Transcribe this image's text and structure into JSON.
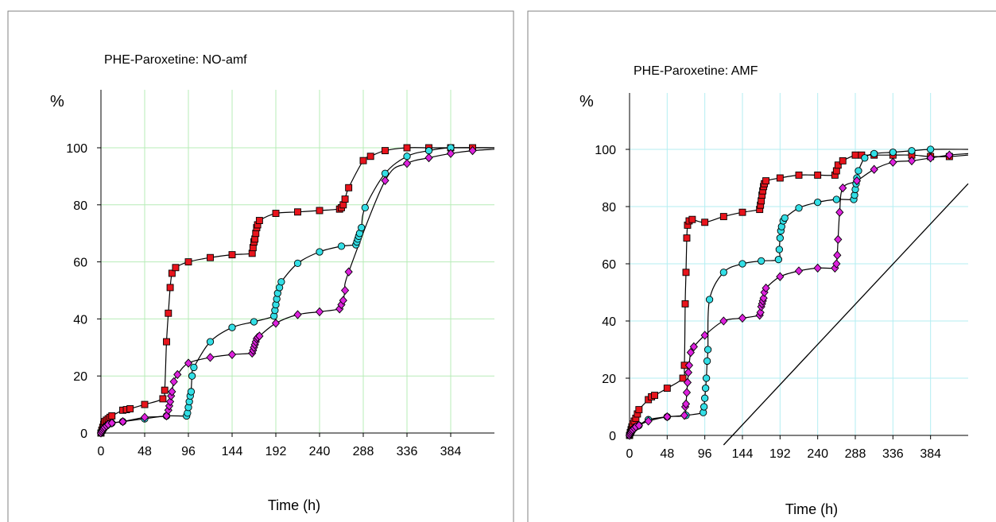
{
  "chart_data": [
    {
      "type": "line",
      "title": "PHE-Paroxetine: NO-amf",
      "ylabel": "%",
      "xlabel": "Time (h)",
      "xlim": [
        0,
        432
      ],
      "ylim": [
        0,
        100
      ],
      "xticks": [
        0,
        48,
        96,
        144,
        192,
        240,
        288,
        336,
        384
      ],
      "yticks": [
        0,
        20,
        40,
        60,
        80,
        100
      ],
      "grid": true,
      "series": [
        {
          "marker": "square",
          "color": "#e8141c",
          "x": [
            0,
            1,
            2,
            3,
            4,
            6,
            8,
            10,
            12,
            24,
            28,
            32,
            48,
            68,
            70,
            72,
            74,
            76,
            78,
            82,
            96,
            120,
            144,
            166,
            167,
            168,
            169,
            170,
            171,
            172,
            174,
            192,
            216,
            240,
            262,
            264,
            266,
            268,
            272,
            288,
            296,
            312,
            336,
            360,
            384,
            408
          ],
          "y": [
            0,
            1,
            2,
            3,
            4,
            4.5,
            5,
            5.5,
            6,
            8,
            8.2,
            8.5,
            10,
            12,
            15,
            32,
            42,
            51,
            56,
            58,
            60,
            61.5,
            62.5,
            63,
            65,
            67,
            68,
            70,
            72,
            73,
            74.5,
            77,
            77.5,
            78,
            78.5,
            79,
            80,
            82,
            86,
            95.5,
            97,
            99,
            100,
            100,
            100,
            100
          ]
        },
        {
          "marker": "circle",
          "color": "#33dfe6",
          "x": [
            0,
            1,
            2,
            3,
            4,
            6,
            8,
            12,
            24,
            48,
            72,
            94,
            95,
            96,
            97,
            98,
            99,
            100,
            102,
            120,
            144,
            168,
            190,
            191,
            192,
            193,
            194,
            196,
            198,
            216,
            240,
            264,
            280,
            281,
            282,
            283,
            284,
            286,
            290,
            312,
            336,
            360,
            384
          ],
          "y": [
            0,
            0.5,
            1,
            1.5,
            2,
            2.5,
            3,
            3.5,
            4,
            5,
            6,
            6,
            7,
            9,
            11,
            13,
            14.5,
            20,
            23,
            32,
            37,
            39,
            41,
            43,
            45,
            47,
            49,
            51,
            53,
            59.5,
            63.5,
            65.5,
            66,
            67,
            68,
            69,
            70,
            72,
            79,
            91,
            97,
            99,
            100
          ]
        },
        {
          "marker": "diamond",
          "color": "#dd22dd",
          "x": [
            0,
            1,
            2,
            3,
            4,
            6,
            8,
            12,
            24,
            48,
            72,
            74,
            75,
            76,
            77,
            78,
            80,
            84,
            96,
            120,
            144,
            166,
            167,
            168,
            169,
            170,
            171,
            172,
            174,
            192,
            216,
            240,
            262,
            264,
            266,
            268,
            272,
            312,
            336,
            360,
            384,
            408
          ],
          "y": [
            0,
            0.5,
            1,
            1.5,
            2,
            2.5,
            3,
            3.5,
            4,
            5.5,
            6,
            8,
            9.5,
            11,
            13,
            14.5,
            18,
            20.5,
            24.5,
            26.5,
            27.5,
            28,
            29,
            30,
            31,
            32,
            33,
            33.5,
            34,
            38.5,
            41.5,
            42.5,
            43.5,
            45,
            46.5,
            50,
            56.5,
            88.5,
            94.5,
            96.5,
            98,
            99
          ]
        }
      ]
    },
    {
      "type": "line",
      "title": "PHE-Paroxetine: AMF",
      "ylabel": "%",
      "xlabel": "Time (h)",
      "xlim": [
        0,
        432
      ],
      "ylim": [
        0,
        100
      ],
      "xticks": [
        0,
        48,
        96,
        144,
        192,
        240,
        288,
        336,
        384
      ],
      "yticks": [
        0,
        20,
        40,
        60,
        80,
        100
      ],
      "grid": true,
      "series": [
        {
          "marker": "square",
          "color": "#e8141c",
          "x": [
            0,
            1,
            2,
            3,
            4,
            6,
            8,
            10,
            12,
            24,
            28,
            32,
            48,
            68,
            70,
            71,
            72,
            73,
            74,
            76,
            80,
            96,
            120,
            144,
            166,
            167,
            168,
            169,
            170,
            171,
            172,
            174,
            192,
            216,
            240,
            262,
            264,
            266,
            272,
            288,
            296,
            312,
            336,
            360,
            384,
            408
          ],
          "y": [
            0,
            1,
            2,
            3,
            4,
            5,
            6,
            7.5,
            9,
            12.5,
            13.5,
            14,
            16.5,
            20,
            24.5,
            46,
            57,
            69,
            73.5,
            75,
            75.5,
            74.5,
            76.5,
            78,
            79,
            80.5,
            82,
            84,
            85.5,
            87,
            88,
            89,
            90,
            91,
            91,
            91,
            92.5,
            94.5,
            96,
            98,
            98,
            98,
            98,
            98,
            97.5,
            97.5
          ]
        },
        {
          "marker": "circle",
          "color": "#33dfe6",
          "x": [
            0,
            1,
            2,
            3,
            4,
            6,
            8,
            12,
            24,
            48,
            72,
            94,
            95,
            96,
            97,
            98,
            99,
            100,
            102,
            120,
            144,
            168,
            190,
            191,
            192,
            193,
            194,
            196,
            198,
            216,
            240,
            264,
            286,
            287,
            288,
            289,
            290,
            292,
            300,
            312,
            336,
            360,
            384
          ],
          "y": [
            0,
            0.5,
            1,
            1.5,
            2,
            2.5,
            3,
            3.5,
            5.5,
            6.5,
            7,
            8,
            10,
            13,
            16.5,
            20,
            26,
            30,
            47.5,
            57,
            60,
            61,
            61.5,
            65,
            69,
            71.5,
            73,
            75,
            76,
            79.5,
            81.5,
            82.5,
            82.5,
            84,
            86,
            88,
            90,
            92.5,
            97,
            98.5,
            99,
            99.5,
            100
          ]
        },
        {
          "marker": "diamond",
          "color": "#dd22dd",
          "x": [
            0,
            1,
            2,
            3,
            4,
            6,
            8,
            12,
            24,
            48,
            70,
            71,
            72,
            73,
            74,
            75,
            76,
            78,
            82,
            96,
            120,
            144,
            166,
            167,
            168,
            169,
            170,
            171,
            172,
            174,
            192,
            216,
            240,
            262,
            264,
            265,
            266,
            268,
            272,
            290,
            312,
            336,
            360,
            384,
            408
          ],
          "y": [
            0,
            0.5,
            1,
            1.5,
            2,
            2.5,
            3,
            3.5,
            5,
            6.5,
            7,
            10,
            11,
            15,
            18.5,
            22,
            24.5,
            29,
            31,
            35,
            40,
            41,
            42,
            43,
            45,
            46,
            47,
            48,
            50,
            51.5,
            55.5,
            57.5,
            58.5,
            58.5,
            60,
            63,
            68.5,
            78,
            86.5,
            89,
            93,
            95.5,
            96,
            97,
            98
          ]
        }
      ],
      "reference_line": {
        "x": [
          120,
          432
        ],
        "y": [
          0,
          88
        ]
      }
    }
  ]
}
